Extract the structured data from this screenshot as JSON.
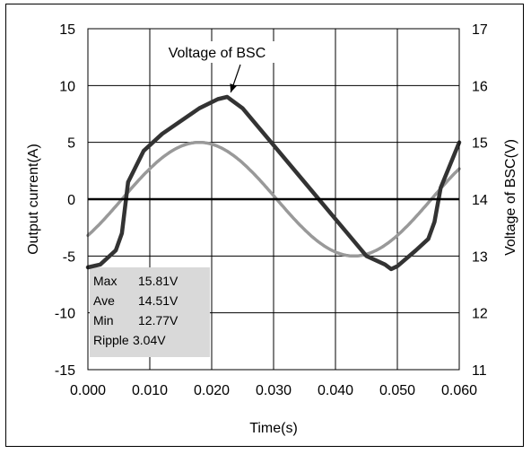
{
  "chart_data": {
    "type": "line",
    "xlabel": "Time(s)",
    "ylabel_left": "Output current(A)",
    "ylabel_right": "Voltage of BSC(V)",
    "xlim": [
      0,
      0.06
    ],
    "ylim_left": [
      -15,
      15
    ],
    "ylim_right": [
      11,
      17
    ],
    "x_ticks": [
      "0.000",
      "0.010",
      "0.020",
      "0.030",
      "0.040",
      "0.050",
      "0.060"
    ],
    "y_ticks_left": [
      "15",
      "10",
      "5",
      "0",
      "-5",
      "-10",
      "-15"
    ],
    "y_ticks_right": [
      "17",
      "16",
      "15",
      "14",
      "13",
      "12",
      "11"
    ],
    "grid": true,
    "annotation": {
      "text": "Voltage of BSC",
      "target": [
        0.0225,
        15.8
      ]
    },
    "stats_box": {
      "lines": [
        {
          "label": "Max",
          "value": "15.81V"
        },
        {
          "label": "Ave",
          "value": "14.51V"
        },
        {
          "label": "Min",
          "value": "12.77V"
        },
        {
          "label": "Ripple",
          "value": "3.04V"
        }
      ],
      "background": "#d9d9d9"
    },
    "series": [
      {
        "axis": "left",
        "color": "#999999",
        "shape": "sine",
        "amplitude": 5,
        "period": 0.05,
        "peak_time": 0.018,
        "x": [
          0.0,
          0.005,
          0.01,
          0.018,
          0.025,
          0.03,
          0.035,
          0.043,
          0.05,
          0.055,
          0.06
        ],
        "y": [
          -3.0,
          -0.6,
          2.9,
          5.0,
          2.7,
          -0.2,
          -3.0,
          -5.0,
          -3.1,
          -0.3,
          2.9
        ]
      },
      {
        "axis": "right",
        "color": "#333333",
        "x": [
          0.0,
          0.002,
          0.0045,
          0.0055,
          0.0065,
          0.009,
          0.012,
          0.018,
          0.021,
          0.0225,
          0.025,
          0.03,
          0.035,
          0.04,
          0.045,
          0.048,
          0.049,
          0.05,
          0.053,
          0.055,
          0.056,
          0.057,
          0.06
        ],
        "y": [
          12.8,
          12.85,
          13.1,
          13.4,
          14.3,
          14.85,
          15.15,
          15.6,
          15.76,
          15.8,
          15.6,
          14.95,
          14.3,
          13.65,
          13.0,
          12.85,
          12.77,
          12.82,
          13.1,
          13.3,
          13.6,
          14.2,
          15.0
        ]
      }
    ]
  }
}
